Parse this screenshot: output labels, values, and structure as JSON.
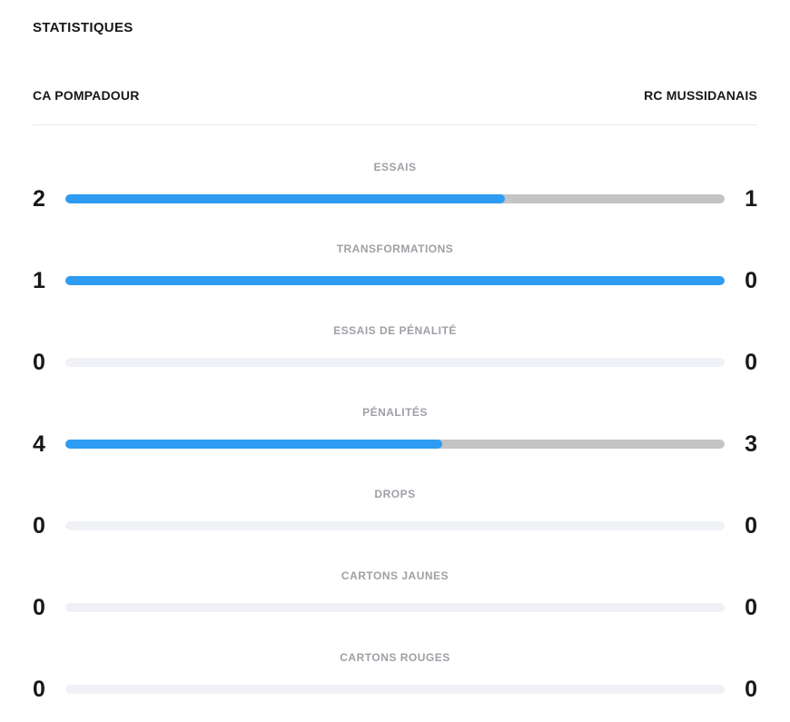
{
  "title": "STATISTIQUES",
  "teams": {
    "home": "CA POMPADOUR",
    "away": "RC MUSSIDANAIS"
  },
  "colors": {
    "home_bar": "#2D9CF2",
    "away_bar": "#C4C4C4",
    "empty_bar": "#F0F1F6",
    "label_text": "#9EA0A6",
    "dark_text": "#17181A",
    "divider": "#E9EAEE"
  },
  "stats": [
    {
      "label": "ESSAIS",
      "home": 2,
      "away": 1
    },
    {
      "label": "TRANSFORMATIONS",
      "home": 1,
      "away": 0
    },
    {
      "label": "ESSAIS DE PÉNALITÉ",
      "home": 0,
      "away": 0
    },
    {
      "label": "PÉNALITÉS",
      "home": 4,
      "away": 3
    },
    {
      "label": "DROPS",
      "home": 0,
      "away": 0
    },
    {
      "label": "CARTONS JAUNES",
      "home": 0,
      "away": 0
    },
    {
      "label": "CARTONS ROUGES",
      "home": 0,
      "away": 0
    }
  ],
  "chart_data": {
    "type": "bar",
    "title": "STATISTIQUES",
    "categories": [
      "ESSAIS",
      "TRANSFORMATIONS",
      "ESSAIS DE PÉNALITÉ",
      "PÉNALITÉS",
      "DROPS",
      "CARTONS JAUNES",
      "CARTONS ROUGES"
    ],
    "series": [
      {
        "name": "CA POMPADOUR",
        "values": [
          2,
          1,
          0,
          4,
          0,
          0,
          0
        ]
      },
      {
        "name": "RC MUSSIDANAIS",
        "values": [
          1,
          0,
          0,
          3,
          0,
          0,
          0
        ]
      }
    ],
    "layout": "horizontal shared bars; each bar filled proportionally home/(home+away), home share blue on left, away share gray on right, fully pale when both values are 0",
    "legend_position": "team names as header row above bars",
    "grid": false
  }
}
